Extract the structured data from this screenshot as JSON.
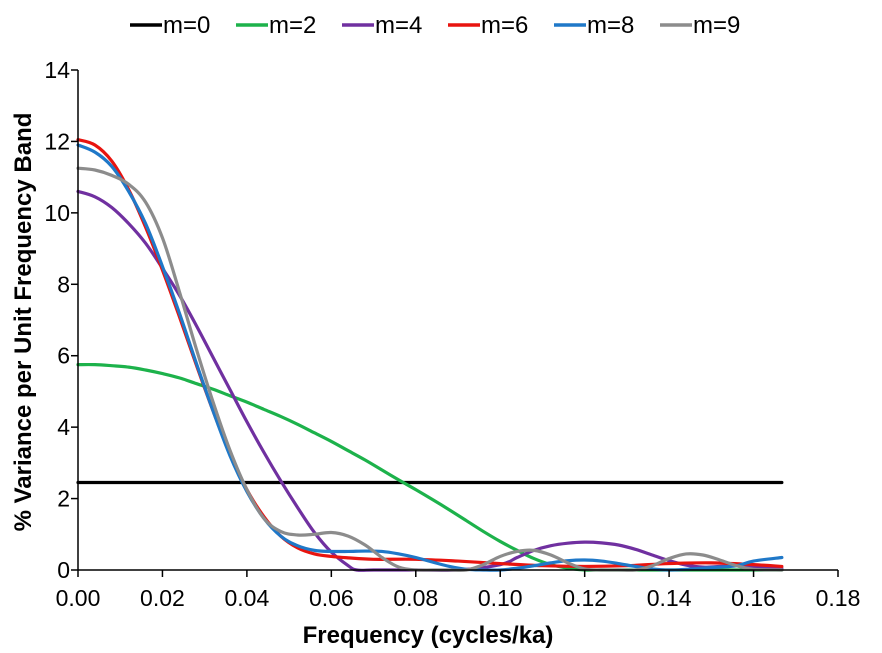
{
  "chart_data": {
    "type": "line",
    "title": "",
    "xlabel": "Frequency (cycles/ka)",
    "ylabel": "% Variance per Unit Frequency Band",
    "xlim": [
      0,
      0.18
    ],
    "ylim": [
      0,
      14
    ],
    "x_ticks": [
      "0.00",
      "0.02",
      "0.04",
      "0.06",
      "0.08",
      "0.10",
      "0.12",
      "0.14",
      "0.16",
      "0.18"
    ],
    "y_ticks": [
      "0",
      "2",
      "4",
      "6",
      "8",
      "10",
      "12",
      "14"
    ],
    "grid": false,
    "legend_position": "top",
    "series": [
      {
        "name": "m=0",
        "color": "#000000",
        "x": [
          0.0,
          0.02,
          0.04,
          0.06,
          0.08,
          0.1,
          0.12,
          0.14,
          0.1667
        ],
        "y": [
          2.45,
          2.45,
          2.45,
          2.45,
          2.45,
          2.45,
          2.45,
          2.45,
          2.45
        ]
      },
      {
        "name": "m=2",
        "color": "#1db24b",
        "x": [
          0.0,
          0.004,
          0.008,
          0.012,
          0.016,
          0.02,
          0.024,
          0.028,
          0.032,
          0.036,
          0.04,
          0.044,
          0.048,
          0.052,
          0.056,
          0.06,
          0.064,
          0.068,
          0.072,
          0.076,
          0.08,
          0.084,
          0.088,
          0.092,
          0.096,
          0.1,
          0.104,
          0.108,
          0.112,
          0.116,
          0.12,
          0.124,
          0.128,
          0.132,
          0.136,
          0.14,
          0.144,
          0.148,
          0.152,
          0.156,
          0.16,
          0.1667
        ],
        "y": [
          5.75,
          5.75,
          5.72,
          5.68,
          5.6,
          5.5,
          5.38,
          5.22,
          5.06,
          4.88,
          4.7,
          4.5,
          4.3,
          4.08,
          3.84,
          3.6,
          3.34,
          3.08,
          2.8,
          2.52,
          2.25,
          1.97,
          1.68,
          1.38,
          1.08,
          0.8,
          0.55,
          0.32,
          0.15,
          0.05,
          0.0,
          0.0,
          0.0,
          0.0,
          0.0,
          0.0,
          0.0,
          0.0,
          0.0,
          0.0,
          0.0,
          0.0
        ]
      },
      {
        "name": "m=4",
        "color": "#7030a0",
        "x": [
          0.0,
          0.004,
          0.008,
          0.012,
          0.016,
          0.02,
          0.024,
          0.028,
          0.032,
          0.036,
          0.04,
          0.044,
          0.048,
          0.052,
          0.056,
          0.06,
          0.064,
          0.066,
          0.07,
          0.076,
          0.08,
          0.09,
          0.1,
          0.104,
          0.108,
          0.112,
          0.116,
          0.12,
          0.124,
          0.128,
          0.132,
          0.136,
          0.14,
          0.144,
          0.148,
          0.152,
          0.156,
          0.16,
          0.1667
        ],
        "y": [
          10.6,
          10.45,
          10.15,
          9.7,
          9.15,
          8.45,
          7.7,
          6.85,
          5.95,
          5.05,
          4.15,
          3.3,
          2.5,
          1.75,
          1.05,
          0.5,
          0.12,
          0.0,
          0.0,
          0.0,
          0.0,
          0.0,
          0.15,
          0.35,
          0.55,
          0.68,
          0.75,
          0.78,
          0.76,
          0.7,
          0.58,
          0.42,
          0.26,
          0.14,
          0.08,
          0.1,
          0.12,
          0.1,
          0.05
        ]
      },
      {
        "name": "m=6",
        "color": "#e8140f",
        "x": [
          0.0,
          0.004,
          0.008,
          0.012,
          0.016,
          0.02,
          0.024,
          0.028,
          0.032,
          0.036,
          0.04,
          0.044,
          0.048,
          0.052,
          0.056,
          0.06,
          0.064,
          0.07,
          0.08,
          0.09,
          0.1,
          0.11,
          0.12,
          0.13,
          0.14,
          0.15,
          0.16,
          0.1667
        ],
        "y": [
          12.05,
          11.9,
          11.45,
          10.65,
          9.6,
          8.4,
          7.1,
          5.75,
          4.45,
          3.25,
          2.25,
          1.5,
          0.95,
          0.62,
          0.45,
          0.38,
          0.34,
          0.3,
          0.3,
          0.25,
          0.18,
          0.12,
          0.1,
          0.12,
          0.18,
          0.2,
          0.15,
          0.1
        ]
      },
      {
        "name": "m=8",
        "color": "#1f78c8",
        "x": [
          0.0,
          0.004,
          0.008,
          0.012,
          0.016,
          0.02,
          0.024,
          0.028,
          0.032,
          0.036,
          0.04,
          0.044,
          0.048,
          0.052,
          0.056,
          0.06,
          0.064,
          0.068,
          0.072,
          0.076,
          0.08,
          0.084,
          0.088,
          0.092,
          0.096,
          0.1,
          0.104,
          0.108,
          0.112,
          0.116,
          0.12,
          0.124,
          0.128,
          0.132,
          0.136,
          0.14,
          0.144,
          0.148,
          0.152,
          0.156,
          0.16,
          0.1667
        ],
        "y": [
          11.9,
          11.7,
          11.3,
          10.6,
          9.7,
          8.5,
          7.2,
          5.8,
          4.45,
          3.2,
          2.2,
          1.45,
          0.95,
          0.68,
          0.55,
          0.52,
          0.52,
          0.53,
          0.52,
          0.45,
          0.35,
          0.22,
          0.1,
          0.02,
          0.0,
          0.0,
          0.05,
          0.12,
          0.2,
          0.26,
          0.28,
          0.25,
          0.18,
          0.1,
          0.03,
          0.0,
          0.02,
          0.05,
          0.08,
          0.12,
          0.25,
          0.35
        ]
      },
      {
        "name": "m=9",
        "color": "#8c8c8c",
        "x": [
          0.0,
          0.004,
          0.008,
          0.012,
          0.016,
          0.02,
          0.024,
          0.028,
          0.032,
          0.036,
          0.04,
          0.044,
          0.048,
          0.052,
          0.056,
          0.06,
          0.064,
          0.068,
          0.072,
          0.076,
          0.08,
          0.084,
          0.088,
          0.092,
          0.096,
          0.1,
          0.104,
          0.108,
          0.112,
          0.116,
          0.12,
          0.124,
          0.128,
          0.132,
          0.136,
          0.14,
          0.144,
          0.148,
          0.152,
          0.156,
          0.16,
          0.1667
        ],
        "y": [
          11.25,
          11.2,
          11.05,
          10.8,
          10.3,
          9.3,
          7.8,
          6.2,
          4.7,
          3.35,
          2.25,
          1.45,
          1.08,
          0.98,
          1.0,
          1.05,
          0.95,
          0.7,
          0.35,
          0.08,
          0.0,
          0.0,
          0.0,
          0.0,
          0.15,
          0.38,
          0.52,
          0.55,
          0.42,
          0.2,
          0.03,
          0.0,
          0.0,
          0.0,
          0.12,
          0.32,
          0.45,
          0.42,
          0.28,
          0.12,
          0.02,
          0.0
        ]
      }
    ]
  }
}
